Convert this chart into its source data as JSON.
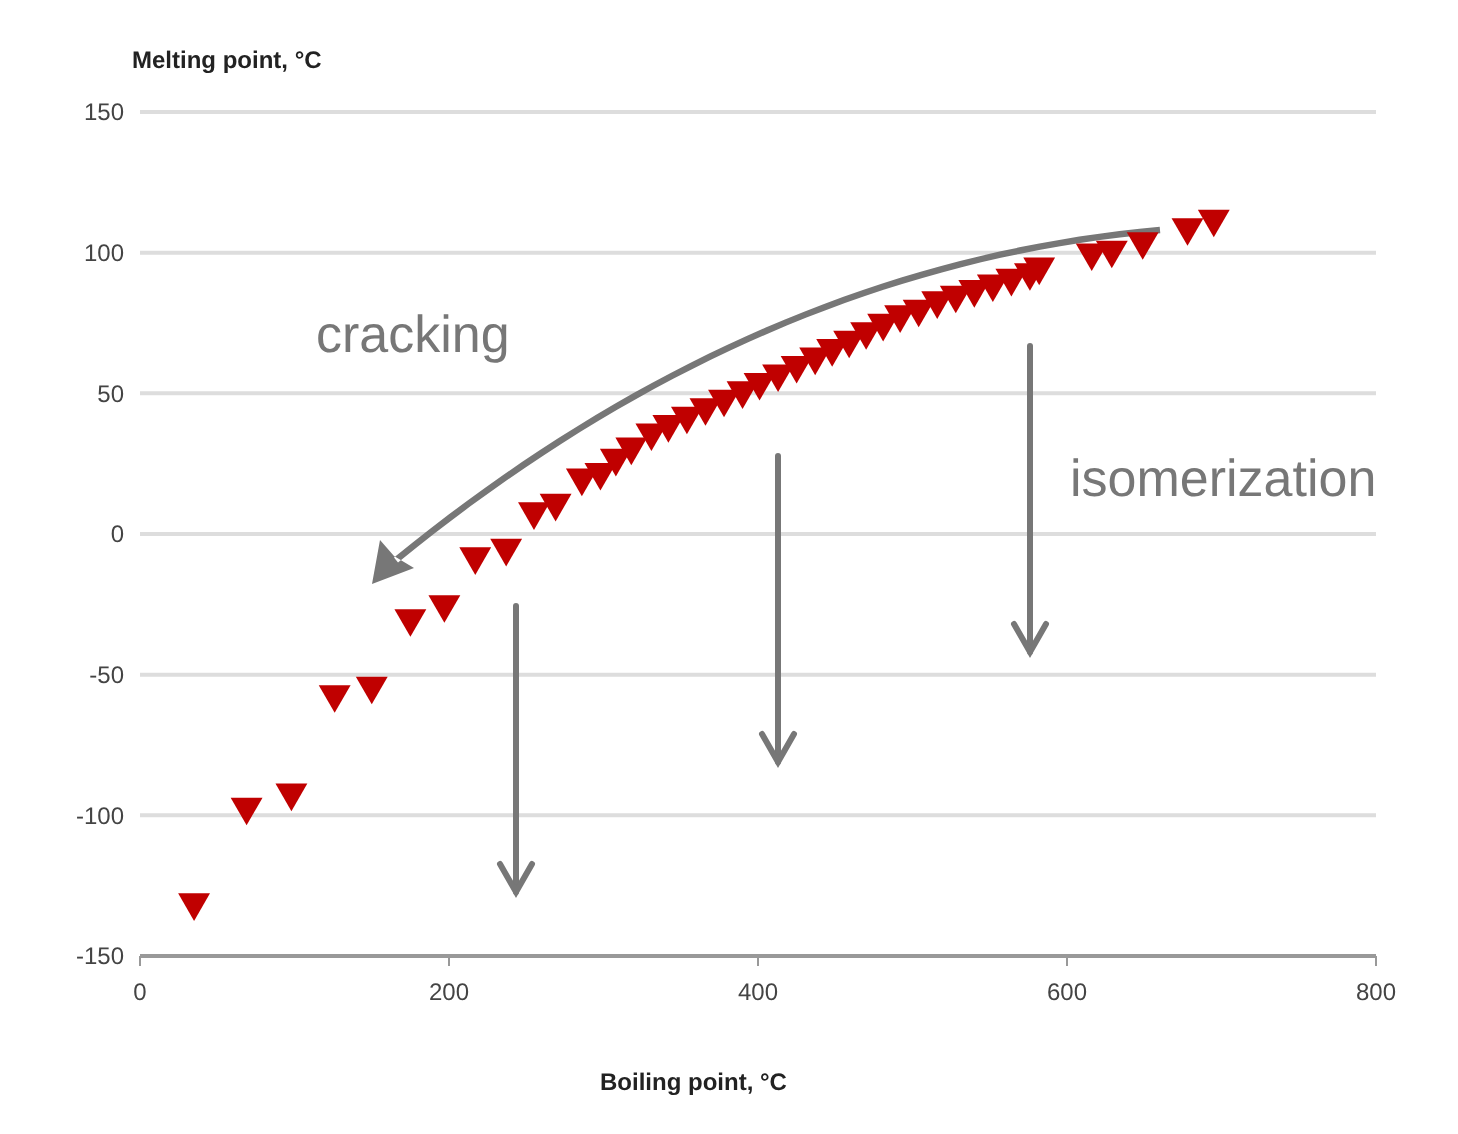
{
  "chart_data": {
    "type": "scatter",
    "xlabel": "Boiling point, °C",
    "ylabel": "Melting point, °C",
    "x": [
      35,
      69,
      98,
      126,
      150,
      175,
      197,
      217,
      237,
      255,
      269,
      286,
      298,
      308,
      318,
      331,
      342,
      354,
      366,
      378,
      390,
      401,
      413,
      425,
      437,
      448,
      459,
      470,
      481,
      492,
      504,
      516,
      528,
      540,
      552,
      564,
      576,
      582,
      616,
      629,
      649,
      678,
      695
    ],
    "series": [
      {
        "color": "#c00000",
        "values": [
          -131,
          -97,
          -92,
          -57,
          -54,
          -30,
          -25,
          -8,
          -5,
          8,
          11,
          20,
          22,
          27,
          31,
          36,
          39,
          42,
          45,
          48,
          51,
          54,
          57,
          60,
          63,
          66,
          69,
          72,
          75,
          78,
          80,
          83,
          85,
          87,
          89,
          91,
          93,
          95,
          100,
          101,
          104,
          109,
          112
        ]
      }
    ],
    "xlim": [
      0,
      800
    ],
    "xticks": [
      0,
      200,
      400,
      600,
      800
    ],
    "ylim": [
      -150,
      150
    ],
    "yticks": [
      -150,
      -100,
      -50,
      0,
      50,
      100,
      150
    ],
    "grid": "y",
    "marker": "triangle",
    "annotations": [
      "cracking",
      "isomerization"
    ]
  }
}
